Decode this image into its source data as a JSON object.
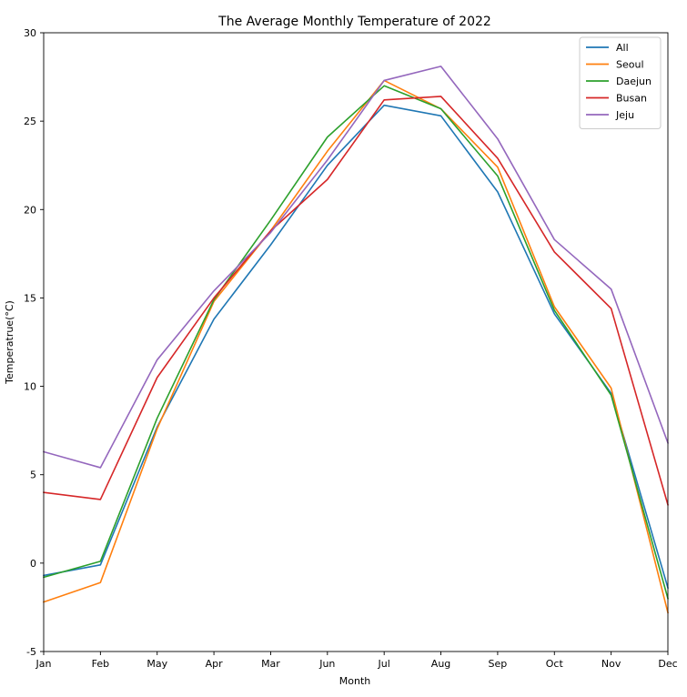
{
  "chart_data": {
    "type": "line",
    "title": "The Average Monthly Temperature of 2022",
    "xlabel": "Month",
    "ylabel": "Temperatrue(°C)",
    "categories": [
      "Jan",
      "Feb",
      "May",
      "Apr",
      "Mar",
      "Jun",
      "Jul",
      "Aug",
      "Sep",
      "Oct",
      "Nov",
      "Dec"
    ],
    "ylim": [
      -5,
      30
    ],
    "yticks": [
      -5,
      0,
      5,
      10,
      15,
      20,
      25,
      30
    ],
    "grid": false,
    "legend_position": "top-right",
    "series": [
      {
        "name": "All",
        "color": "#1f77b4",
        "values": [
          -0.7,
          -0.1,
          7.7,
          13.8,
          18.0,
          22.5,
          25.9,
          25.3,
          21.0,
          14.1,
          9.6,
          -1.4
        ]
      },
      {
        "name": "Seoul",
        "color": "#ff7f0e",
        "values": [
          -2.2,
          -1.1,
          7.6,
          14.8,
          18.8,
          23.3,
          27.3,
          25.7,
          22.4,
          14.5,
          9.9,
          -2.8
        ]
      },
      {
        "name": "Daejun",
        "color": "#2ca02c",
        "values": [
          -0.8,
          0.1,
          8.2,
          14.9,
          19.4,
          24.1,
          27.0,
          25.7,
          21.9,
          14.3,
          9.5,
          -2.0
        ]
      },
      {
        "name": "Busan",
        "color": "#d62728",
        "values": [
          4.0,
          3.6,
          10.5,
          15.0,
          18.8,
          21.7,
          26.2,
          26.4,
          22.9,
          17.6,
          14.4,
          3.3
        ]
      },
      {
        "name": "Jeju",
        "color": "#9467bd",
        "values": [
          6.3,
          5.4,
          11.5,
          15.4,
          18.7,
          22.8,
          27.3,
          28.1,
          24.0,
          18.3,
          15.5,
          6.8
        ]
      }
    ]
  }
}
